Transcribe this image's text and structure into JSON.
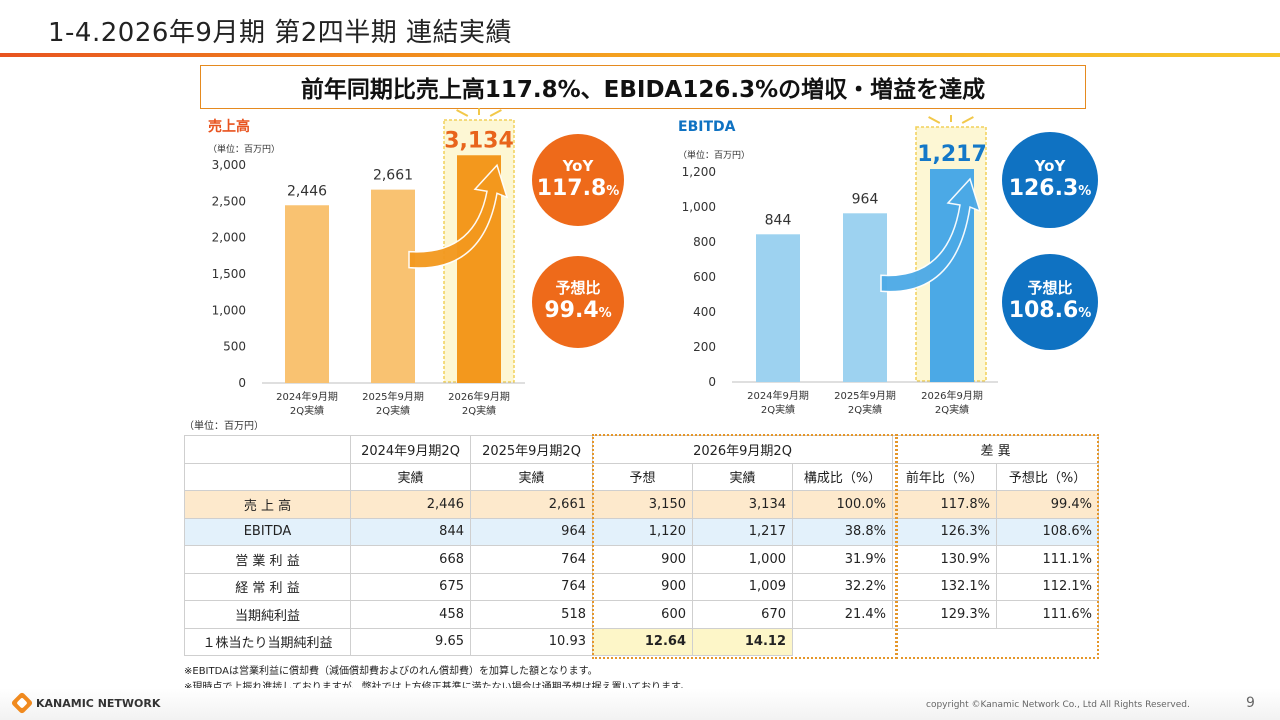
{
  "slide": {
    "title": "1-4.2026年9月期 第2四半期 連結実績",
    "headline": "前年同期比売上高117.8%、EBIDA126.3%の増収・増益を達成",
    "page_number": "9",
    "copyright": "copyright ©Kanamic Network Co., Ltd All Rights Reserved.",
    "logo_text": "KANAMIC NETWORK"
  },
  "colors": {
    "accent_orange": "#e8531f",
    "bar_orange_light": "#f9c271",
    "bar_orange": "#f3981d",
    "bar_blue_light": "#9dd2f0",
    "bar_blue": "#4ba9e6",
    "circle_orange": "#ee6a1a",
    "circle_blue": "#0f72c2",
    "highlight_value_orange": "#e8641c",
    "highlight_value_blue": "#1478c8"
  },
  "chart_data": [
    {
      "type": "bar",
      "title": "売上高",
      "unit": "（単位：百万円）",
      "categories": [
        "2024年9月期\n2Q実績",
        "2025年9月期\n2Q実績",
        "2026年9月期\n2Q実績"
      ],
      "values": [
        2446,
        2661,
        3134
      ],
      "value_labels": [
        "2,446",
        "2,661",
        "3,134"
      ],
      "yticks": [
        "0",
        "500",
        "1,000",
        "1,500",
        "2,000",
        "2,500",
        "3,000"
      ],
      "ylim": [
        0,
        3000
      ],
      "grid": false
    },
    {
      "type": "bar",
      "title": "EBITDA",
      "unit": "（単位：百万円）",
      "categories": [
        "2024年9月期\n2Q実績",
        "2025年9月期\n2Q実績",
        "2026年9月期\n2Q実績"
      ],
      "values": [
        844,
        964,
        1217
      ],
      "value_labels": [
        "844",
        "964",
        "1,217"
      ],
      "yticks": [
        "0",
        "200",
        "400",
        "600",
        "800",
        "1,000",
        "1,200"
      ],
      "ylim": [
        0,
        1200
      ],
      "grid": false
    }
  ],
  "badges": {
    "sales_yoy_label": "YoY",
    "sales_yoy_value": "117.8",
    "sales_forecast_label": "予想比",
    "sales_forecast_value": "99.4",
    "ebitda_yoy_label": "YoY",
    "ebitda_yoy_value": "126.3",
    "ebitda_forecast_label": "予想比",
    "ebitda_forecast_value": "108.6",
    "percent_sign": "%"
  },
  "table": {
    "unit": "（単位：百万円）",
    "group_headers": [
      "2024年9月期2Q",
      "2025年9月期2Q",
      "2026年9月期2Q",
      "差 異"
    ],
    "sub_headers": [
      "実績",
      "実績",
      "予想",
      "実績",
      "構成比（%）",
      "前年比（%）",
      "予想比（%）"
    ],
    "rows": [
      {
        "label": "売 上 高",
        "cells": [
          "2,446",
          "2,661",
          "3,150",
          "3,134",
          "100.0%",
          "117.8%",
          "99.4%"
        ]
      },
      {
        "label": "EBITDA",
        "cells": [
          "844",
          "964",
          "1,120",
          "1,217",
          "38.8%",
          "126.3%",
          "108.6%"
        ]
      },
      {
        "label": "営 業 利 益",
        "cells": [
          "668",
          "764",
          "900",
          "1,000",
          "31.9%",
          "130.9%",
          "111.1%"
        ]
      },
      {
        "label": "経 常 利 益",
        "cells": [
          "675",
          "764",
          "900",
          "1,009",
          "32.2%",
          "132.1%",
          "112.1%"
        ]
      },
      {
        "label": "当期純利益",
        "cells": [
          "458",
          "518",
          "600",
          "670",
          "21.4%",
          "129.3%",
          "111.6%"
        ]
      },
      {
        "label": "１株当たり当期純利益",
        "cells": [
          "9.65",
          "10.93",
          "12.64",
          "14.12",
          "",
          "",
          ""
        ]
      }
    ]
  },
  "notes": [
    "※EBITDAは営業利益に償却費（減価償却費およびのれん償却費）を加算した額となります。",
    "※現時点で上振れ進捗しておりますが、弊社では上方修正基準に満たない場合は通期予想は据え置いております。"
  ]
}
